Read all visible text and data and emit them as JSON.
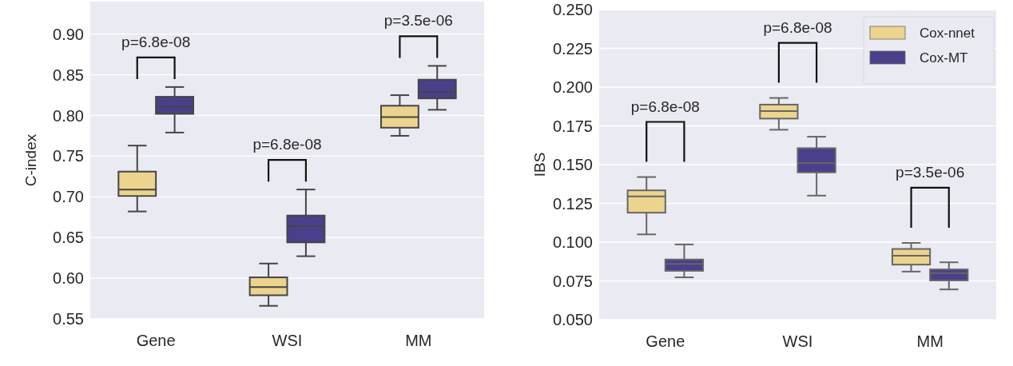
{
  "chart_data": [
    {
      "type": "box",
      "ylabel": "C-index",
      "categories": [
        "Gene",
        "WSI",
        "MM"
      ],
      "ylim": [
        0.55,
        0.94
      ],
      "yticks": [
        {
          "value": 0.55,
          "label": "0.55"
        },
        {
          "value": 0.6,
          "label": "0.60"
        },
        {
          "value": 0.65,
          "label": "0.65"
        },
        {
          "value": 0.7,
          "label": "0.70"
        },
        {
          "value": 0.75,
          "label": "0.75"
        },
        {
          "value": 0.8,
          "label": "0.80"
        },
        {
          "value": 0.85,
          "label": "0.85"
        },
        {
          "value": 0.9,
          "label": "0.90"
        }
      ],
      "grid": "y",
      "legend": false,
      "series": [
        {
          "color": "#ecd48e",
          "boxes": [
            {
              "low": 0.682,
              "q1": 0.701,
              "median": 0.709,
              "q3": 0.731,
              "high": 0.763
            },
            {
              "low": 0.566,
              "q1": 0.579,
              "median": 0.589,
              "q3": 0.601,
              "high": 0.618
            },
            {
              "low": 0.775,
              "q1": 0.785,
              "median": 0.798,
              "q3": 0.812,
              "high": 0.825
            }
          ]
        },
        {
          "color": "#4a3f8a",
          "boxes": [
            {
              "low": 0.779,
              "q1": 0.802,
              "median": 0.811,
              "q3": 0.823,
              "high": 0.835
            },
            {
              "low": 0.627,
              "q1": 0.644,
              "median": 0.664,
              "q3": 0.677,
              "high": 0.709
            },
            {
              "low": 0.807,
              "q1": 0.821,
              "median": 0.829,
              "q3": 0.844,
              "high": 0.861
            }
          ]
        }
      ],
      "annotations": [
        "p=6.8e-08",
        "p=6.8e-08",
        "p=3.5e-06"
      ]
    },
    {
      "type": "box",
      "ylabel": "IBS",
      "categories": [
        "Gene",
        "WSI",
        "MM"
      ],
      "ylim": [
        0.05,
        0.25
      ],
      "yticks": [
        {
          "value": 0.05,
          "label": "0.050"
        },
        {
          "value": 0.075,
          "label": "0.075"
        },
        {
          "value": 0.1,
          "label": "0.100"
        },
        {
          "value": 0.125,
          "label": "0.125"
        },
        {
          "value": 0.15,
          "label": "0.150"
        },
        {
          "value": 0.175,
          "label": "0.175"
        },
        {
          "value": 0.2,
          "label": "0.200"
        },
        {
          "value": 0.225,
          "label": "0.225"
        },
        {
          "value": 0.25,
          "label": "0.250"
        }
      ],
      "grid": "y",
      "legend": "top right",
      "series": [
        {
          "name": "Cox-nnet",
          "color": "#ecd48e",
          "boxes": [
            {
              "low": 0.105,
              "q1": 0.119,
              "median": 0.1295,
              "q3": 0.1334,
              "high": 0.142
            },
            {
              "low": 0.1725,
              "q1": 0.1797,
              "median": 0.1846,
              "q3": 0.1887,
              "high": 0.193
            },
            {
              "low": 0.081,
              "q1": 0.0855,
              "median": 0.0913,
              "q3": 0.0956,
              "high": 0.0995
            }
          ]
        },
        {
          "name": "Cox-MT",
          "color": "#4a3f8a",
          "boxes": [
            {
              "low": 0.0773,
              "q1": 0.0815,
              "median": 0.086,
              "q3": 0.0888,
              "high": 0.0985
            },
            {
              "low": 0.13,
              "q1": 0.145,
              "median": 0.151,
              "q3": 0.1606,
              "high": 0.168
            },
            {
              "low": 0.0695,
              "q1": 0.0753,
              "median": 0.08,
              "q3": 0.0824,
              "high": 0.087
            }
          ]
        }
      ],
      "annotations": [
        "p=6.8e-08",
        "p=6.8e-08",
        "p=3.5e-06"
      ]
    }
  ]
}
